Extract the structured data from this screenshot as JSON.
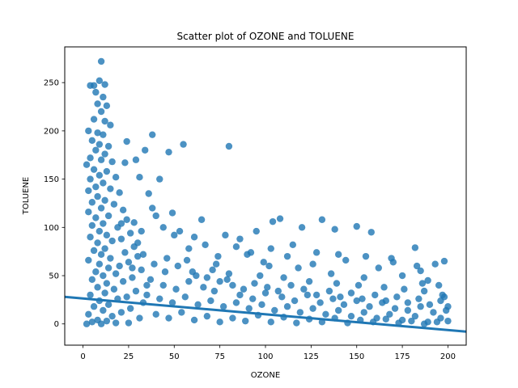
{
  "chart_data": {
    "type": "scatter",
    "title": "Scatter plot of OZONE and TOLUENE",
    "xlabel": "OZONE",
    "ylabel": "TOLUENE",
    "xlim": [
      -10,
      210
    ],
    "ylim": [
      -22,
      287
    ],
    "x_ticks": [
      0,
      25,
      50,
      75,
      100,
      125,
      150,
      175,
      200
    ],
    "y_ticks": [
      0,
      50,
      100,
      150,
      200,
      250
    ],
    "grid": false,
    "legend": "none",
    "color": "#1f77b4",
    "regression_line": {
      "x": [
        -10,
        210
      ],
      "y": [
        28,
        -8
      ]
    },
    "series": [
      {
        "points": [
          [
            10,
            272
          ],
          [
            4,
            247
          ],
          [
            6,
            247
          ],
          [
            9,
            252
          ],
          [
            12,
            248
          ],
          [
            7,
            240
          ],
          [
            11,
            235
          ],
          [
            8,
            228
          ],
          [
            13,
            226
          ],
          [
            10,
            220
          ],
          [
            6,
            212
          ],
          [
            12,
            210
          ],
          [
            15,
            206
          ],
          [
            3,
            200
          ],
          [
            8,
            198
          ],
          [
            11,
            196
          ],
          [
            5,
            190
          ],
          [
            9,
            186
          ],
          [
            14,
            184
          ],
          [
            7,
            180
          ],
          [
            12,
            176
          ],
          [
            4,
            172
          ],
          [
            10,
            170
          ],
          [
            16,
            168
          ],
          [
            2,
            165
          ],
          [
            6,
            160
          ],
          [
            13,
            158
          ],
          [
            9,
            154
          ],
          [
            18,
            152
          ],
          [
            4,
            150
          ],
          [
            11,
            146
          ],
          [
            7,
            142
          ],
          [
            15,
            140
          ],
          [
            3,
            138
          ],
          [
            20,
            136
          ],
          [
            8,
            132
          ],
          [
            12,
            128
          ],
          [
            5,
            126
          ],
          [
            17,
            124
          ],
          [
            10,
            120
          ],
          [
            22,
            118
          ],
          [
            3,
            116
          ],
          [
            14,
            112
          ],
          [
            7,
            110
          ],
          [
            24,
            108
          ],
          [
            11,
            104
          ],
          [
            5,
            102
          ],
          [
            19,
            100
          ],
          [
            9,
            96
          ],
          [
            26,
            94
          ],
          [
            13,
            92
          ],
          [
            4,
            90
          ],
          [
            21,
            88
          ],
          [
            16,
            86
          ],
          [
            8,
            84
          ],
          [
            28,
            80
          ],
          [
            12,
            78
          ],
          [
            6,
            76
          ],
          [
            23,
            74
          ],
          [
            10,
            72
          ],
          [
            30,
            70
          ],
          [
            15,
            68
          ],
          [
            3,
            66
          ],
          [
            25,
            64
          ],
          [
            9,
            62
          ],
          [
            20,
            60
          ],
          [
            14,
            58
          ],
          [
            32,
            56
          ],
          [
            7,
            54
          ],
          [
            18,
            52
          ],
          [
            11,
            50
          ],
          [
            27,
            48
          ],
          [
            5,
            46
          ],
          [
            22,
            44
          ],
          [
            13,
            42
          ],
          [
            35,
            40
          ],
          [
            8,
            38
          ],
          [
            17,
            36
          ],
          [
            29,
            34
          ],
          [
            12,
            32
          ],
          [
            4,
            30
          ],
          [
            24,
            28
          ],
          [
            19,
            26
          ],
          [
            9,
            24
          ],
          [
            33,
            22
          ],
          [
            14,
            20
          ],
          [
            6,
            18
          ],
          [
            26,
            16
          ],
          [
            11,
            14
          ],
          [
            21,
            12
          ],
          [
            3,
            10
          ],
          [
            16,
            8
          ],
          [
            31,
            6
          ],
          [
            8,
            4
          ],
          [
            13,
            3
          ],
          [
            5,
            2
          ],
          [
            18,
            1
          ],
          [
            10,
            0
          ],
          [
            2,
            0
          ],
          [
            25,
            1
          ],
          [
            24,
            189
          ],
          [
            38,
            196
          ],
          [
            47,
            178
          ],
          [
            55,
            186
          ],
          [
            80,
            184
          ],
          [
            29,
            170
          ],
          [
            34,
            180
          ],
          [
            23,
            167
          ],
          [
            31,
            152
          ],
          [
            42,
            150
          ],
          [
            36,
            135
          ],
          [
            38,
            120
          ],
          [
            49,
            115
          ],
          [
            21,
            104
          ],
          [
            28,
            105
          ],
          [
            40,
            112
          ],
          [
            44,
            100
          ],
          [
            53,
            96
          ],
          [
            61,
            90
          ],
          [
            65,
            108
          ],
          [
            78,
            92
          ],
          [
            86,
            88
          ],
          [
            95,
            96
          ],
          [
            104,
            106
          ],
          [
            108,
            109
          ],
          [
            120,
            100
          ],
          [
            131,
            108
          ],
          [
            138,
            98
          ],
          [
            150,
            101
          ],
          [
            158,
            95
          ],
          [
            84,
            80
          ],
          [
            90,
            72
          ],
          [
            99,
            64
          ],
          [
            112,
            70
          ],
          [
            126,
            62
          ],
          [
            144,
            66
          ],
          [
            162,
            58
          ],
          [
            169,
            68
          ],
          [
            182,
            79
          ],
          [
            185,
            55
          ],
          [
            193,
            62
          ],
          [
            198,
            65
          ],
          [
            189,
            45
          ],
          [
            175,
            50
          ],
          [
            154,
            48
          ],
          [
            136,
            52
          ],
          [
            118,
            58
          ],
          [
            102,
            60
          ],
          [
            73,
            62
          ],
          [
            57,
            66
          ],
          [
            30,
            84
          ],
          [
            33,
            72
          ],
          [
            46,
            68
          ],
          [
            52,
            60
          ],
          [
            60,
            54
          ],
          [
            68,
            48
          ],
          [
            75,
            44
          ],
          [
            82,
            40
          ],
          [
            88,
            36
          ],
          [
            94,
            42
          ],
          [
            101,
            38
          ],
          [
            107,
            34
          ],
          [
            114,
            40
          ],
          [
            121,
            36
          ],
          [
            128,
            30
          ],
          [
            135,
            34
          ],
          [
            141,
            28
          ],
          [
            147,
            32
          ],
          [
            153,
            26
          ],
          [
            160,
            30
          ],
          [
            166,
            24
          ],
          [
            172,
            28
          ],
          [
            178,
            22
          ],
          [
            184,
            26
          ],
          [
            190,
            20
          ],
          [
            196,
            24
          ],
          [
            200,
            18
          ],
          [
            35,
            30
          ],
          [
            42,
            26
          ],
          [
            49,
            22
          ],
          [
            56,
            28
          ],
          [
            63,
            20
          ],
          [
            70,
            24
          ],
          [
            77,
            18
          ],
          [
            84,
            22
          ],
          [
            91,
            16
          ],
          [
            98,
            20
          ],
          [
            105,
            14
          ],
          [
            112,
            18
          ],
          [
            119,
            12
          ],
          [
            126,
            16
          ],
          [
            133,
            10
          ],
          [
            140,
            14
          ],
          [
            147,
            8
          ],
          [
            154,
            12
          ],
          [
            161,
            6
          ],
          [
            168,
            10
          ],
          [
            175,
            4
          ],
          [
            182,
            8
          ],
          [
            189,
            2
          ],
          [
            196,
            6
          ],
          [
            200,
            3
          ],
          [
            40,
            10
          ],
          [
            47,
            6
          ],
          [
            54,
            12
          ],
          [
            61,
            4
          ],
          [
            68,
            8
          ],
          [
            75,
            2
          ],
          [
            82,
            6
          ],
          [
            89,
            3
          ],
          [
            96,
            9
          ],
          [
            103,
            2
          ],
          [
            110,
            7
          ],
          [
            117,
            1
          ],
          [
            124,
            5
          ],
          [
            131,
            2
          ],
          [
            138,
            6
          ],
          [
            145,
            1
          ],
          [
            152,
            4
          ],
          [
            159,
            2
          ],
          [
            166,
            5
          ],
          [
            173,
            1
          ],
          [
            180,
            3
          ],
          [
            187,
            0
          ],
          [
            194,
            2
          ],
          [
            37,
            46
          ],
          [
            44,
            40
          ],
          [
            51,
            36
          ],
          [
            58,
            44
          ],
          [
            66,
            38
          ],
          [
            72,
            34
          ],
          [
            79,
            46
          ],
          [
            86,
            30
          ],
          [
            93,
            26
          ],
          [
            100,
            32
          ],
          [
            109,
            28
          ],
          [
            116,
            24
          ],
          [
            123,
            30
          ],
          [
            130,
            22
          ],
          [
            137,
            26
          ],
          [
            143,
            20
          ],
          [
            150,
            24
          ],
          [
            157,
            18
          ],
          [
            164,
            22
          ],
          [
            171,
            16
          ],
          [
            178,
            14
          ],
          [
            185,
            18
          ],
          [
            192,
            12
          ],
          [
            199,
            14
          ],
          [
            27,
            58
          ],
          [
            39,
            62
          ],
          [
            45,
            54
          ],
          [
            62,
            50
          ],
          [
            71,
            56
          ],
          [
            80,
            52
          ],
          [
            97,
            50
          ],
          [
            110,
            48
          ],
          [
            124,
            44
          ],
          [
            139,
            42
          ],
          [
            151,
            40
          ],
          [
            165,
            38
          ],
          [
            176,
            36
          ],
          [
            187,
            34
          ],
          [
            197,
            30
          ],
          [
            32,
            96
          ],
          [
            50,
            92
          ],
          [
            58,
            78
          ],
          [
            67,
            82
          ],
          [
            74,
            70
          ],
          [
            92,
            74
          ],
          [
            103,
            78
          ],
          [
            115,
            82
          ],
          [
            128,
            74
          ],
          [
            140,
            72
          ],
          [
            155,
            70
          ],
          [
            170,
            64
          ],
          [
            183,
            60
          ],
          [
            195,
            40
          ],
          [
            198,
            28
          ],
          [
            186,
            42
          ]
        ]
      }
    ]
  }
}
